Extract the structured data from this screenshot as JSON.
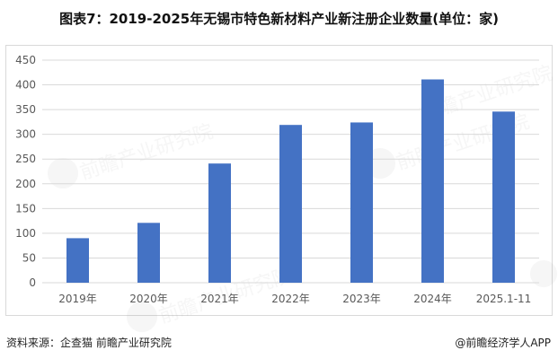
{
  "title": "图表7：2019-2025年无锡市特色新材料产业新注册企业数量(单位：家)",
  "footer": {
    "source": "资料来源：企查猫 前瞻产业研究院",
    "brand": "@前瞻经济学人APP"
  },
  "watermark": "前瞻产业研究院",
  "colors": {
    "bar": "#4472C4",
    "grid": "#d9d9d9",
    "axis_text": "#595959"
  },
  "chart_data": {
    "type": "bar",
    "categories": [
      "2019年",
      "2020年",
      "2021年",
      "2022年",
      "2023年",
      "2024年",
      "2025.1-11"
    ],
    "values": [
      90,
      121,
      241,
      319,
      324,
      411,
      346
    ],
    "title": "图表7：2019-2025年无锡市特色新材料产业新注册企业数量(单位：家)",
    "xlabel": "",
    "ylabel": "",
    "ylim": [
      0,
      450
    ],
    "yticks": [
      0,
      50,
      100,
      150,
      200,
      250,
      300,
      350,
      400,
      450
    ],
    "grid": true,
    "legend": "none"
  }
}
